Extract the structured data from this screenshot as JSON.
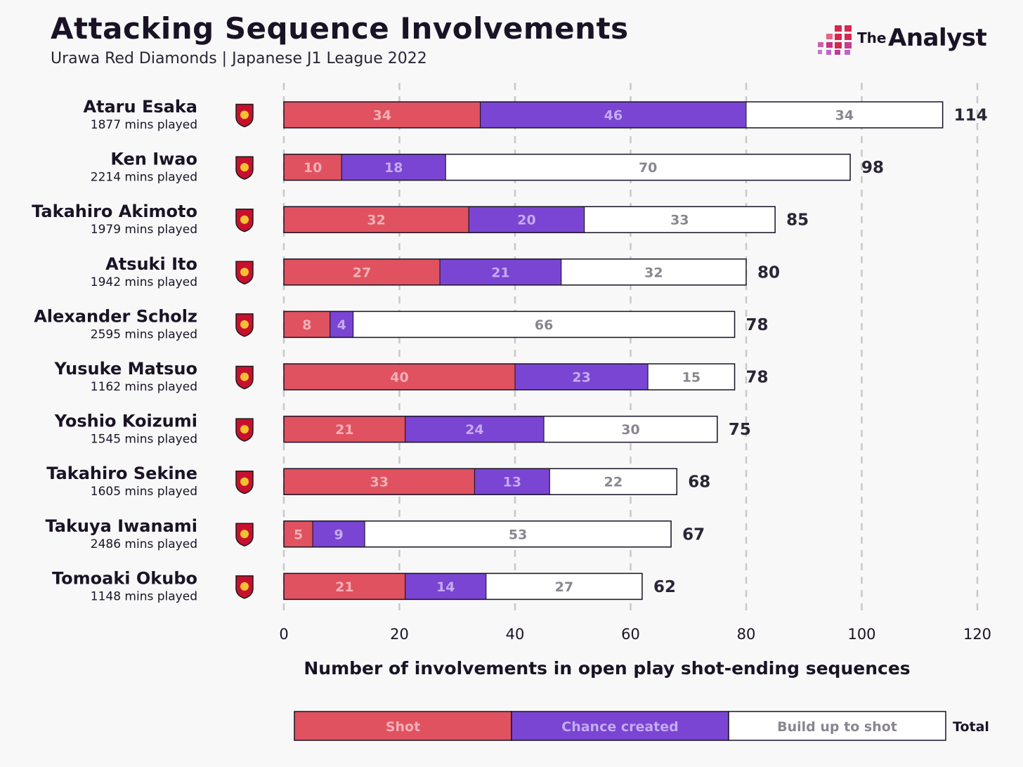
{
  "header": {
    "title": "Attacking Sequence Involvements",
    "subtitle": "Urawa Red Diamonds | Japanese J1 League 2022",
    "logo_the": "The",
    "logo_analyst": "Analyst"
  },
  "colors": {
    "shot": "#e05260",
    "chance": "#7a45d2",
    "buildup": "#ffffff",
    "shot_text": "#f1b0b6",
    "chance_text": "#c5aaf0",
    "buildup_text": "#8a8690",
    "grid": "#c8c8c8",
    "logo_accent": "#d6274f"
  },
  "crest_icon": "urawa-red-diamonds-crest-icon",
  "chart_data": {
    "type": "bar",
    "orientation": "horizontal",
    "stacked": true,
    "xlabel": "Number of involvements in open play shot-ending sequences",
    "xlim": [
      0,
      120
    ],
    "xticks": [
      0,
      20,
      40,
      60,
      80,
      100,
      120
    ],
    "grid": "vertical dashed",
    "categories": [
      "Ataru Esaka",
      "Ken Iwao",
      "Takahiro Akimoto",
      "Atsuki Ito",
      "Alexander Scholz",
      "Yusuke Matsuo",
      "Yoshio Koizumi",
      "Takahiro Sekine",
      "Takuya Iwanami",
      "Tomoaki Okubo"
    ],
    "minutes_labels": [
      "1877 mins played",
      "2214 mins played",
      "1979 mins played",
      "1942 mins played",
      "2595 mins played",
      "1162 mins played",
      "1545 mins played",
      "1605 mins played",
      "2486 mins played",
      "1148 mins played"
    ],
    "series": [
      {
        "name": "Shot",
        "values": [
          34,
          10,
          32,
          27,
          8,
          40,
          21,
          33,
          5,
          21
        ]
      },
      {
        "name": "Chance created",
        "values": [
          46,
          18,
          20,
          21,
          4,
          23,
          24,
          13,
          9,
          14
        ]
      },
      {
        "name": "Build up to shot",
        "values": [
          34,
          70,
          33,
          32,
          66,
          15,
          30,
          22,
          53,
          27
        ]
      }
    ],
    "totals": [
      114,
      98,
      85,
      80,
      78,
      78,
      75,
      68,
      67,
      62
    ],
    "legend": {
      "position": "bottom",
      "items": [
        "Shot",
        "Chance created",
        "Build up to shot"
      ],
      "total_label": "Total"
    }
  }
}
